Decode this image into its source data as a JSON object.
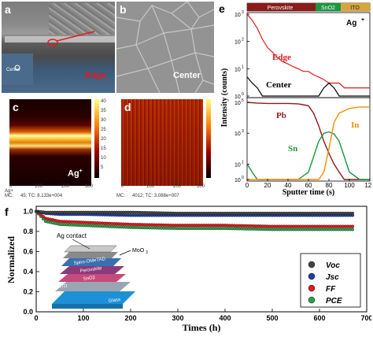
{
  "panels": {
    "a": {
      "label": "a",
      "edge_text": "Edge",
      "center_text": "Center"
    },
    "b": {
      "label": "b",
      "center_text": "Center"
    },
    "c": {
      "label": "c",
      "ion": "Ag",
      "ion_sup": "+",
      "footer_left": "Ag+",
      "footer_mc": "MC:",
      "footer_mc_val": "45; TC: 8.133e+004",
      "ticks_x": [
        "0",
        "100",
        "200",
        "300"
      ],
      "ticks_y": [
        "40",
        "35",
        "30",
        "25",
        "20",
        "15",
        "10",
        "5"
      ]
    },
    "d": {
      "label": "d",
      "footer_mc": "MC:",
      "footer_mc_val": "4012; TC: 3.088e+007",
      "ticks_x": [
        "0",
        "100",
        "200",
        "300"
      ]
    },
    "e": {
      "label": "e",
      "top_bar": [
        "Perovskite",
        "SnO2",
        "ITO"
      ],
      "ion": "Ag",
      "ion_sup": "+",
      "series_top": [
        {
          "name": "Edge",
          "color": "#e31a1c"
        },
        {
          "name": "Center",
          "color": "#000000"
        }
      ],
      "series_bottom": [
        {
          "name": "Pb",
          "color": "#8b1a1a"
        },
        {
          "name": "Sn",
          "color": "#1a9641"
        },
        {
          "name": "In",
          "color": "#ff8c00"
        }
      ],
      "xlabel": "Sputter time (s)",
      "ylabel": "Intensity (counts)",
      "xticks": [
        "0",
        "20",
        "40",
        "60",
        "80",
        "100",
        "120"
      ],
      "yticks_top": [
        "10",
        "10",
        "10",
        "10"
      ],
      "yticks_top_exp": [
        "3",
        "2",
        "1",
        "0"
      ],
      "yticks_bottom": [
        "10",
        "10",
        "10",
        "10"
      ],
      "yticks_bottom_exp": [
        "5",
        "3",
        "1",
        "0"
      ]
    },
    "f": {
      "label": "f",
      "ylabel": "Normalized",
      "xlabel": "Times (h)",
      "xticks": [
        "0",
        "100",
        "200",
        "300",
        "400",
        "500",
        "600",
        "700"
      ],
      "yticks": [
        "1.0",
        "0.8",
        "0.6",
        "0.4",
        "0.2",
        "0.0"
      ],
      "legend": [
        {
          "name": "Voc",
          "color": "#444444"
        },
        {
          "name": "Jsc",
          "color": "#1f3f9f"
        },
        {
          "name": "FF",
          "color": "#e31a1c"
        },
        {
          "name": "PCE",
          "color": "#2e9f4a"
        }
      ],
      "inset_labels": {
        "ag": "Ag contact",
        "moo3": "MoO",
        "moo3_sub": "3",
        "spiro": "Spiro-OMeTAD",
        "perov": "Perovskite",
        "sno2": "SnO2",
        "ito": "ITO",
        "glass": "Glass"
      }
    }
  },
  "chart_data": [
    {
      "type": "line",
      "title": "",
      "xlabel": "Sputter time (s)",
      "ylabel": "Intensity (counts)",
      "xlim": [
        0,
        120
      ],
      "series": [
        {
          "name": "Edge",
          "x": [
            0,
            5,
            10,
            15,
            20,
            25,
            30,
            35,
            40,
            45,
            50,
            55,
            60,
            65,
            70,
            75,
            80,
            85,
            90,
            95,
            100,
            105,
            110,
            115,
            120
          ],
          "values": [
            1000,
            600,
            300,
            120,
            60,
            40,
            25,
            18,
            15,
            12,
            10,
            8,
            8,
            6,
            5,
            4,
            3,
            3,
            3,
            2,
            2,
            2,
            2,
            2,
            2
          ]
        },
        {
          "name": "Center",
          "x": [
            0,
            5,
            10,
            15,
            20,
            25,
            30,
            35,
            40,
            45,
            50,
            55,
            60,
            65,
            70,
            75,
            80,
            85,
            90,
            95,
            100,
            105,
            110,
            115,
            120
          ],
          "values": [
            5,
            3,
            2,
            1,
            1,
            1,
            1,
            1,
            1,
            1,
            1,
            1,
            1,
            1,
            1,
            2,
            3,
            2,
            1,
            1,
            1,
            1,
            1,
            1,
            1
          ]
        }
      ]
    },
    {
      "type": "line",
      "title": "",
      "xlabel": "Sputter time (s)",
      "ylabel": "Intensity (counts)",
      "xlim": [
        0,
        120
      ],
      "series": [
        {
          "name": "Pb",
          "x": [
            0,
            10,
            20,
            30,
            40,
            50,
            60,
            65,
            70,
            75,
            80,
            85,
            90,
            95,
            100,
            110,
            120
          ],
          "values": [
            100000,
            90000,
            85000,
            85000,
            85000,
            80000,
            60000,
            20000,
            3000,
            300,
            50,
            10,
            3,
            1,
            1,
            1,
            1
          ]
        },
        {
          "name": "Sn",
          "x": [
            0,
            5,
            10,
            40,
            50,
            60,
            65,
            70,
            75,
            80,
            85,
            90,
            95,
            100,
            110,
            120
          ],
          "values": [
            10,
            3,
            1,
            1,
            1,
            3,
            30,
            300,
            1000,
            1200,
            900,
            300,
            30,
            3,
            1,
            1
          ]
        },
        {
          "name": "In",
          "x": [
            0,
            60,
            70,
            75,
            80,
            85,
            90,
            100,
            110,
            120
          ],
          "values": [
            1,
            1,
            1,
            3,
            100,
            5000,
            20000,
            40000,
            50000,
            50000
          ]
        }
      ]
    },
    {
      "type": "line",
      "title": "",
      "xlabel": "Times (h)",
      "ylabel": "Normalized",
      "xlim": [
        0,
        700
      ],
      "ylim": [
        0,
        1.05
      ],
      "series": [
        {
          "name": "Voc",
          "x": [
            0,
            20,
            50,
            100,
            200,
            300,
            400,
            500,
            600,
            670
          ],
          "values": [
            1.0,
            0.99,
            0.99,
            0.99,
            0.99,
            0.98,
            0.98,
            0.98,
            0.98,
            0.98
          ]
        },
        {
          "name": "Jsc",
          "x": [
            0,
            20,
            50,
            100,
            200,
            300,
            400,
            500,
            600,
            670
          ],
          "values": [
            1.0,
            0.98,
            0.97,
            0.97,
            0.96,
            0.96,
            0.96,
            0.96,
            0.96,
            0.96
          ]
        },
        {
          "name": "FF",
          "x": [
            0,
            20,
            50,
            100,
            200,
            300,
            400,
            500,
            600,
            670
          ],
          "values": [
            1.0,
            0.93,
            0.9,
            0.89,
            0.87,
            0.86,
            0.86,
            0.85,
            0.85,
            0.85
          ]
        },
        {
          "name": "PCE",
          "x": [
            0,
            20,
            50,
            100,
            200,
            300,
            400,
            500,
            600,
            670
          ],
          "values": [
            1.0,
            0.9,
            0.87,
            0.86,
            0.84,
            0.83,
            0.83,
            0.82,
            0.82,
            0.82
          ]
        }
      ]
    }
  ]
}
